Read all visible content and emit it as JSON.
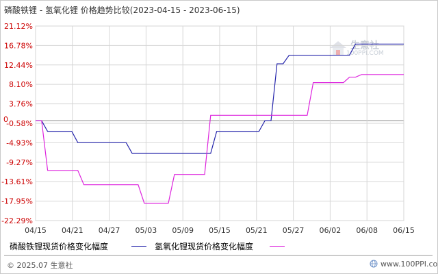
{
  "title": "磷酸铁锂 - 氢氧化锂 价格趋势比较(2023-04-15 - 2023-06-15)",
  "watermark": {
    "brand": "生意社",
    "url": "100PPI.COM"
  },
  "footer": {
    "copyright": "© 2025.07 生意社",
    "site": "www.100PPI.com"
  },
  "colors": {
    "series1": "#2222aa",
    "series2": "#dd22dd",
    "grid": "#d6d6d6",
    "axis_label": "#cc0000",
    "date_label": "#333333"
  },
  "chart_data": {
    "type": "line",
    "title": "磷酸铁锂 - 氢氧化锂 价格趋势比较(2023-04-15 - 2023-06-15)",
    "x_range": [
      "2023-04-15",
      "2023-06-15"
    ],
    "x_ticks": [
      "04/15",
      "04/21",
      "04/27",
      "05/03",
      "05/09",
      "05/15",
      "05/21",
      "05/27",
      "06/02",
      "06/08",
      "06/15"
    ],
    "y_ticks": [
      "21.12%",
      "16.78%",
      "12.44%",
      "8.10%",
      "3.76%",
      "-0.58%",
      "-4.93%",
      "-9.27%",
      "-13.61%",
      "-17.95%",
      "-22.29%"
    ],
    "y_tick_values": [
      21.12,
      16.78,
      12.44,
      8.1,
      3.76,
      -0.58,
      -4.93,
      -9.27,
      -13.61,
      -17.95,
      -22.29
    ],
    "ylim": [
      -22.29,
      21.12
    ],
    "zero_label": "0",
    "grid": true,
    "legend_position": "bottom-left",
    "series": [
      {
        "name": "磷酸铁锂现货价格变化幅度",
        "color": "#2222aa",
        "points": [
          [
            "2023-04-15",
            0.0
          ],
          [
            "2023-04-16",
            0.0
          ],
          [
            "2023-04-17",
            -2.4
          ],
          [
            "2023-04-21",
            -2.4
          ],
          [
            "2023-04-22",
            -4.9
          ],
          [
            "2023-04-30",
            -4.9
          ],
          [
            "2023-05-01",
            -7.3
          ],
          [
            "2023-05-14",
            -7.3
          ],
          [
            "2023-05-15",
            -2.4
          ],
          [
            "2023-05-22",
            -2.4
          ],
          [
            "2023-05-23",
            0.0
          ],
          [
            "2023-05-24",
            0.0
          ],
          [
            "2023-05-25",
            12.7
          ],
          [
            "2023-05-26",
            12.7
          ],
          [
            "2023-05-27",
            14.6
          ],
          [
            "2023-06-06",
            14.6
          ],
          [
            "2023-06-07",
            17.1
          ],
          [
            "2023-06-15",
            17.1
          ]
        ]
      },
      {
        "name": "氢氧化锂现货价格变化幅度",
        "color": "#dd22dd",
        "points": [
          [
            "2023-04-15",
            0.0
          ],
          [
            "2023-04-16",
            0.0
          ],
          [
            "2023-04-17",
            -11.1
          ],
          [
            "2023-04-22",
            -11.1
          ],
          [
            "2023-04-23",
            -14.3
          ],
          [
            "2023-05-02",
            -14.3
          ],
          [
            "2023-05-03",
            -18.4
          ],
          [
            "2023-05-07",
            -18.4
          ],
          [
            "2023-05-08",
            -12.0
          ],
          [
            "2023-05-13",
            -12.0
          ],
          [
            "2023-05-14",
            1.2
          ],
          [
            "2023-05-30",
            1.2
          ],
          [
            "2023-05-31",
            8.5
          ],
          [
            "2023-06-05",
            8.5
          ],
          [
            "2023-06-06",
            9.7
          ],
          [
            "2023-06-07",
            9.7
          ],
          [
            "2023-06-08",
            10.3
          ],
          [
            "2023-06-15",
            10.3
          ]
        ]
      }
    ]
  }
}
